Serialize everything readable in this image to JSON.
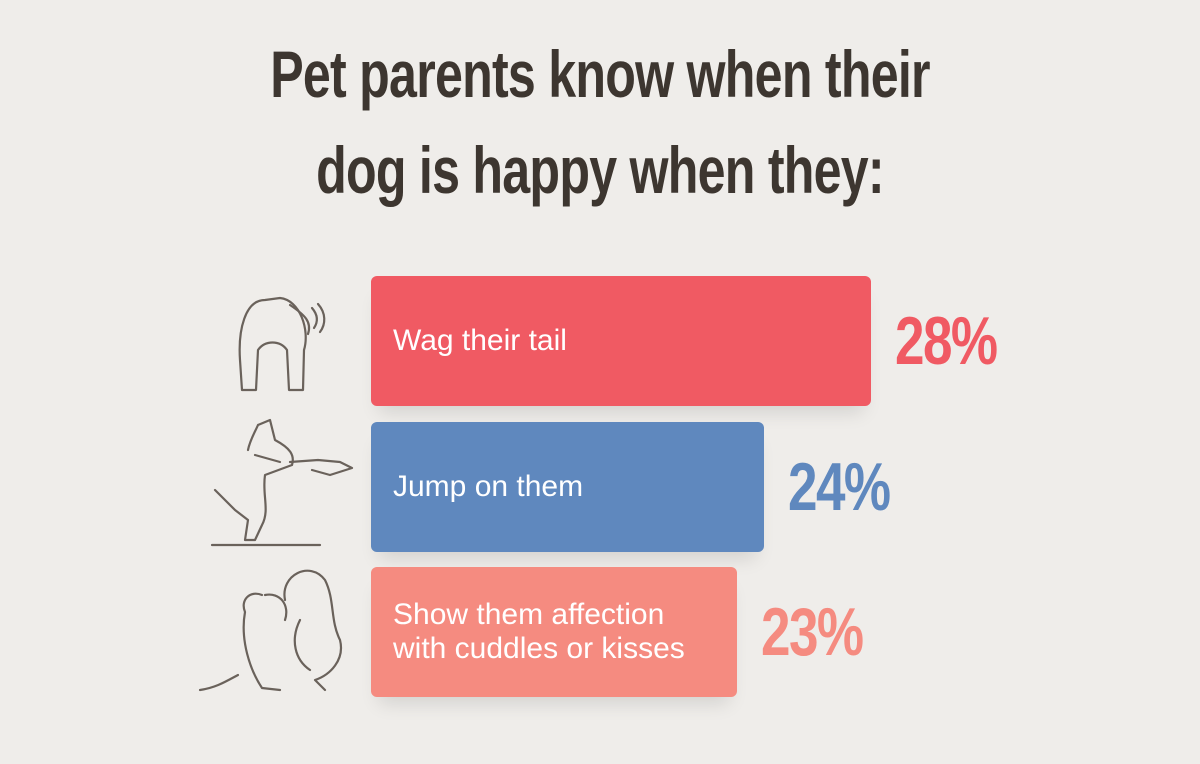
{
  "chart_data": {
    "type": "bar",
    "orientation": "horizontal",
    "title": "Pet parents know when their dog is happy when they:",
    "categories": [
      "Wag their tail",
      "Jump on them",
      "Show them affection with cuddles or kisses"
    ],
    "values": [
      28,
      24,
      23
    ],
    "value_labels": [
      "28%",
      "24%",
      "23%"
    ],
    "colors": [
      "#f05a63",
      "#5f88be",
      "#f58b80"
    ]
  }
}
